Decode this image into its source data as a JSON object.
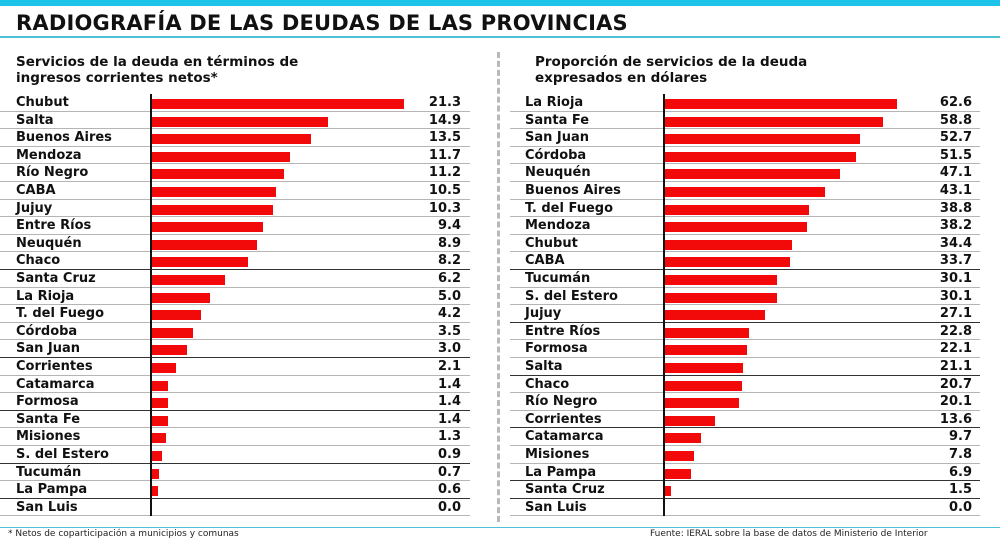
{
  "title": "RADIOGRAFÍA DE LAS DEUDAS DE LAS PROVINCIAS",
  "footnote": "* Netos de coparticipación a municipios y comunas",
  "source": "Fuente: IERAL sobre la base de datos de Ministerio de Interior",
  "colors": {
    "bar": "#f20a0a",
    "accent": "#1ec3ea",
    "rule": "#4dc2d6"
  },
  "chart_data": [
    {
      "type": "bar",
      "orientation": "horizontal",
      "title": "Servicios de la deuda en términos de ingresos corrientes netos*",
      "title_lines": [
        "Servicios de la deuda en términos de",
        "ingresos corrientes netos*"
      ],
      "xlabel": "",
      "ylabel": "",
      "xlim": [
        0,
        21.3
      ],
      "grid": false,
      "categories": [
        "Chubut",
        "Salta",
        "Buenos Aires",
        "Mendoza",
        "Río Negro",
        "CABA",
        "Jujuy",
        "Entre Ríos",
        "Neuquén",
        "Chaco",
        "Santa Cruz",
        "La Rioja",
        "T. del Fuego",
        "Córdoba",
        "San Juan",
        "Corrientes",
        "Catamarca",
        "Formosa",
        "Santa Fe",
        "Misiones",
        "S. del Estero",
        "Tucumán",
        "La Pampa",
        "San Luis"
      ],
      "values": [
        21.3,
        14.9,
        13.5,
        11.7,
        11.2,
        10.5,
        10.3,
        9.4,
        8.9,
        8.2,
        6.2,
        5.0,
        4.2,
        3.5,
        3.0,
        2.1,
        1.4,
        1.4,
        1.4,
        1.3,
        0.9,
        0.7,
        0.6,
        0.0
      ],
      "value_labels": [
        "21.3",
        "14.9",
        "13.5",
        "11.7",
        "11.2",
        "10.5",
        "10.3",
        "9.4",
        "8.9",
        "8.2",
        "6.2",
        "5.0",
        "4.2",
        "3.5",
        "3.0",
        "2.1",
        "1.4",
        "1.4",
        "1.4",
        "1.3",
        "0.9",
        "0.7",
        "0.6",
        "0.0"
      ]
    },
    {
      "type": "bar",
      "orientation": "horizontal",
      "title": "Proporción de servicios de la deuda expresados en dólares",
      "title_lines": [
        "Proporción de servicios de la deuda",
        "expresados en dólares"
      ],
      "xlabel": "",
      "ylabel": "",
      "xlim": [
        0,
        62.6
      ],
      "grid": false,
      "categories": [
        "La Rioja",
        "Santa Fe",
        "San Juan",
        "Córdoba",
        "Neuquén",
        "Buenos Aires",
        "T. del Fuego",
        "Mendoza",
        "Chubut",
        "CABA",
        "Tucumán",
        "S. del Estero",
        "Jujuy",
        "Entre Ríos",
        "Formosa",
        "Salta",
        "Chaco",
        "Río Negro",
        "Corrientes",
        "Catamarca",
        "Misiones",
        "La Pampa",
        "Santa Cruz",
        "San Luis"
      ],
      "values": [
        62.6,
        58.8,
        52.7,
        51.5,
        47.1,
        43.1,
        38.8,
        38.2,
        34.4,
        33.7,
        30.1,
        30.1,
        27.1,
        22.8,
        22.1,
        21.1,
        20.7,
        20.1,
        13.6,
        9.7,
        7.8,
        6.9,
        1.5,
        0.0
      ],
      "value_labels": [
        "62.6",
        "58.8",
        "52.7",
        "51.5",
        "47.1",
        "43.1",
        "38.8",
        "38.2",
        "34.4",
        "33.7",
        "30.1",
        "30.1",
        "27.1",
        "22.8",
        "22.1",
        "21.1",
        "20.7",
        "20.1",
        "13.6",
        "9.7",
        "7.8",
        "6.9",
        "1.5",
        "0.0"
      ]
    }
  ]
}
